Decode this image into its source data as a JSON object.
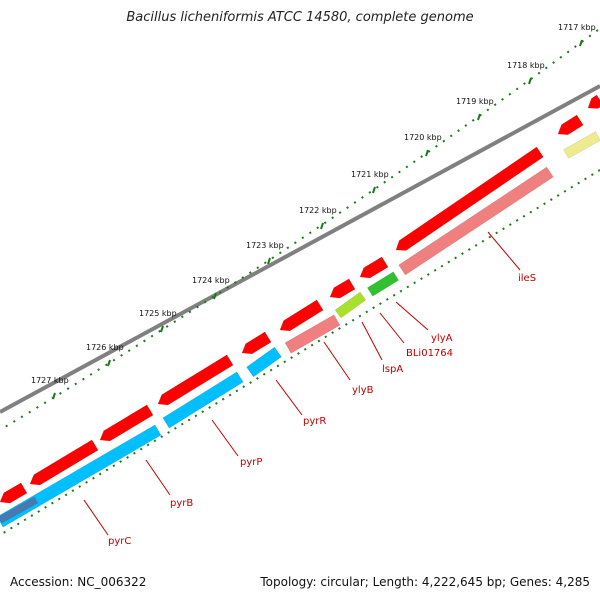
{
  "title": "Bacillus licheniformis ATCC 14580, complete genome",
  "footer": {
    "accession": "Accession: NC_006322",
    "topology": "Topology: circular; Length: 4,222,645 bp; Genes: 4,285"
  },
  "colors": {
    "forward_gene": "#ff0000",
    "reverse_gene": "#00bfff",
    "highlight_gene": "#f08080",
    "backbone": "#808080",
    "tick": "#1a7a1a",
    "label": "#c00000",
    "lime": "#a8e030",
    "green": "#30c030",
    "pale_yellow": "#eeea90"
  },
  "kbp_ticks": [
    "1717 kbp",
    "1718 kbp",
    "1719 kbp",
    "1720 kbp",
    "1721 kbp",
    "1722 kbp",
    "1723 kbp",
    "1724 kbp",
    "1725 kbp",
    "1726 kbp",
    "1727 kbp"
  ],
  "gene_labels": [
    "ileS",
    "ylyA",
    "BLi01764",
    "lspA",
    "ylyB",
    "pyrR",
    "pyrP",
    "pyrB",
    "pyrC"
  ]
}
